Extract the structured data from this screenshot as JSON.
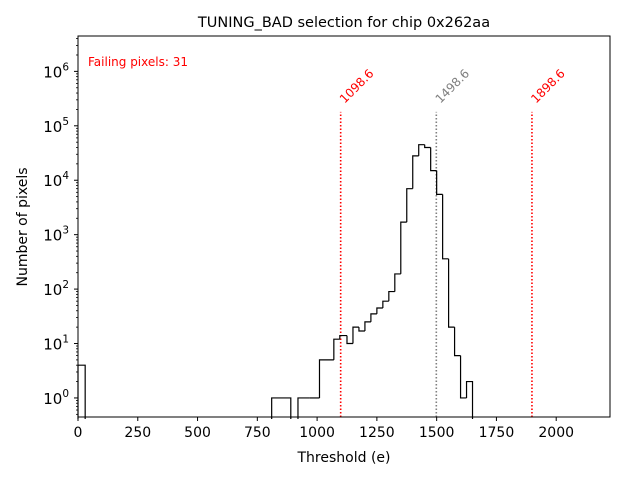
{
  "chart_data": {
    "type": "histogram",
    "title": "TUNING_BAD selection for chip 0x262aa",
    "xlabel": "Threshold (e)",
    "ylabel": "Number of pixels",
    "xlim": [
      0,
      2225
    ],
    "ylim_log10": [
      -0.35,
      6.65
    ],
    "x_ticks": [
      0,
      250,
      500,
      750,
      1000,
      1250,
      1500,
      1750,
      2000
    ],
    "x_tick_labels": [
      "0",
      "250",
      "500",
      "750",
      "1000",
      "1250",
      "1500",
      "1750",
      "2000"
    ],
    "y_ticks_log10": [
      0,
      1,
      2,
      3,
      4,
      5,
      6
    ],
    "y_tick_labels": [
      {
        "base": "10",
        "exp": "0"
      },
      {
        "base": "10",
        "exp": "1"
      },
      {
        "base": "10",
        "exp": "2"
      },
      {
        "base": "10",
        "exp": "3"
      },
      {
        "base": "10",
        "exp": "4"
      },
      {
        "base": "10",
        "exp": "5"
      },
      {
        "base": "10",
        "exp": "6"
      }
    ],
    "annotation": {
      "text": "Failing pixels: 31",
      "color": "#ff0000"
    },
    "vlines": [
      {
        "x": 1098.6,
        "label": "1098.6",
        "color": "#ff0000"
      },
      {
        "x": 1498.6,
        "label": "1498.6",
        "color": "#808080"
      },
      {
        "x": 1898.6,
        "label": "1898.6",
        "color": "#ff0000"
      }
    ],
    "vline_top_value": 180000,
    "bins": [
      {
        "x0": 0,
        "x1": 30,
        "count": 4
      },
      {
        "x0": 810,
        "x1": 890,
        "count": 1
      },
      {
        "x0": 920,
        "x1": 970,
        "count": 1
      },
      {
        "x0": 970,
        "x1": 1010,
        "count": 1
      },
      {
        "x0": 1010,
        "x1": 1070,
        "count": 5
      },
      {
        "x0": 1070,
        "x1": 1095,
        "count": 12
      },
      {
        "x0": 1095,
        "x1": 1125,
        "count": 14
      },
      {
        "x0": 1125,
        "x1": 1150,
        "count": 10
      },
      {
        "x0": 1150,
        "x1": 1175,
        "count": 20
      },
      {
        "x0": 1175,
        "x1": 1200,
        "count": 17
      },
      {
        "x0": 1200,
        "x1": 1225,
        "count": 25
      },
      {
        "x0": 1225,
        "x1": 1250,
        "count": 35
      },
      {
        "x0": 1250,
        "x1": 1275,
        "count": 45
      },
      {
        "x0": 1275,
        "x1": 1300,
        "count": 60
      },
      {
        "x0": 1300,
        "x1": 1325,
        "count": 90
      },
      {
        "x0": 1325,
        "x1": 1350,
        "count": 190
      },
      {
        "x0": 1350,
        "x1": 1375,
        "count": 1700
      },
      {
        "x0": 1375,
        "x1": 1400,
        "count": 7000
      },
      {
        "x0": 1400,
        "x1": 1425,
        "count": 28000
      },
      {
        "x0": 1425,
        "x1": 1450,
        "count": 45000
      },
      {
        "x0": 1450,
        "x1": 1475,
        "count": 40000
      },
      {
        "x0": 1475,
        "x1": 1500,
        "count": 15000
      },
      {
        "x0": 1500,
        "x1": 1525,
        "count": 5500
      },
      {
        "x0": 1525,
        "x1": 1550,
        "count": 360
      },
      {
        "x0": 1550,
        "x1": 1575,
        "count": 20
      },
      {
        "x0": 1575,
        "x1": 1600,
        "count": 6
      },
      {
        "x0": 1600,
        "x1": 1625,
        "count": 1
      },
      {
        "x0": 1625,
        "x1": 1650,
        "count": 2
      }
    ]
  }
}
